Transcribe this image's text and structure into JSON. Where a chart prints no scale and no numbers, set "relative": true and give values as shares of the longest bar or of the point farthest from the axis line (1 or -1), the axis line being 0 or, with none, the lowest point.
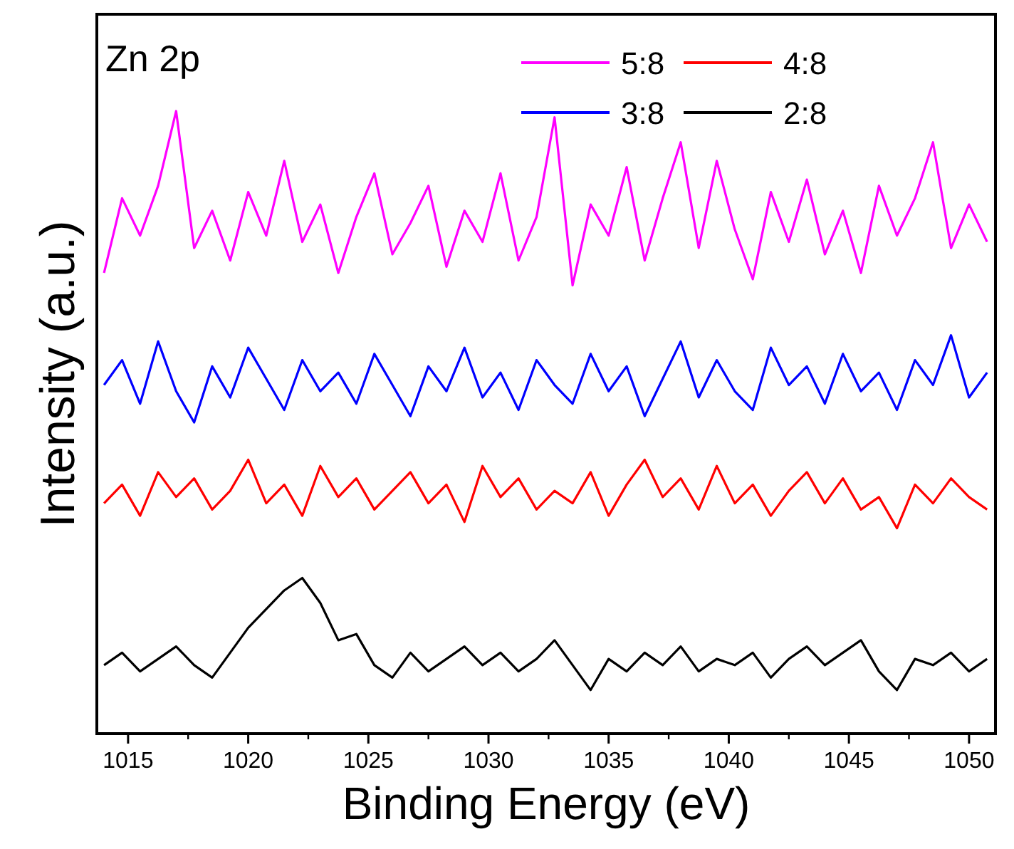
{
  "chart_data": {
    "type": "line",
    "relative": true,
    "xlabel": "Binding Energy (eV)",
    "ylabel": "Intensity (a.u.)",
    "annotations": [
      "Zn 2p"
    ],
    "legend": "top right",
    "tick_labels": "x",
    "xlim": [
      1013.7,
      1051.1
    ],
    "xticks": [
      1015,
      1020,
      1025,
      1030,
      1035,
      1040,
      1045,
      1050
    ],
    "x": [
      1014,
      1014.75,
      1015.5,
      1016.25,
      1017,
      1017.75,
      1018.5,
      1019.25,
      1020,
      1020.75,
      1021.5,
      1022.25,
      1023,
      1023.75,
      1024.5,
      1025.25,
      1026,
      1026.75,
      1027.5,
      1028.25,
      1029,
      1029.75,
      1030.5,
      1031.25,
      1032,
      1032.75,
      1033.5,
      1034.25,
      1035,
      1035.75,
      1036.5,
      1037.25,
      1038,
      1038.75,
      1039.5,
      1040.25,
      1041,
      1041.75,
      1042.5,
      1043.25,
      1044,
      1044.75,
      1045.5,
      1046.25,
      1047,
      1047.75,
      1048.5,
      1049.25,
      1050,
      1050.75
    ],
    "series": [
      {
        "name": "5:8",
        "color": "#ff00ff",
        "values": [
          0.74,
          0.86,
          0.8,
          0.88,
          1.0,
          0.78,
          0.84,
          0.76,
          0.87,
          0.8,
          0.92,
          0.79,
          0.85,
          0.74,
          0.83,
          0.9,
          0.77,
          0.82,
          0.88,
          0.75,
          0.84,
          0.79,
          0.9,
          0.76,
          0.83,
          0.99,
          0.72,
          0.85,
          0.8,
          0.91,
          0.76,
          0.86,
          0.95,
          0.78,
          0.92,
          0.81,
          0.73,
          0.87,
          0.79,
          0.89,
          0.77,
          0.84,
          0.74,
          0.88,
          0.8,
          0.86,
          0.95,
          0.78,
          0.85,
          0.79
        ]
      },
      {
        "name": "4:8",
        "color": "#ff0000",
        "values": [
          0.37,
          0.4,
          0.35,
          0.42,
          0.38,
          0.41,
          0.36,
          0.39,
          0.44,
          0.37,
          0.4,
          0.35,
          0.43,
          0.38,
          0.41,
          0.36,
          0.39,
          0.42,
          0.37,
          0.4,
          0.34,
          0.43,
          0.38,
          0.41,
          0.36,
          0.39,
          0.37,
          0.42,
          0.35,
          0.4,
          0.44,
          0.38,
          0.41,
          0.36,
          0.43,
          0.37,
          0.4,
          0.35,
          0.39,
          0.42,
          0.37,
          0.41,
          0.36,
          0.38,
          0.33,
          0.4,
          0.37,
          0.41,
          0.38,
          0.36
        ]
      },
      {
        "name": "3:8",
        "color": "#0000ff",
        "values": [
          0.56,
          0.6,
          0.53,
          0.63,
          0.55,
          0.5,
          0.59,
          0.54,
          0.62,
          0.57,
          0.52,
          0.6,
          0.55,
          0.58,
          0.53,
          0.61,
          0.56,
          0.51,
          0.59,
          0.55,
          0.62,
          0.54,
          0.58,
          0.52,
          0.6,
          0.56,
          0.53,
          0.61,
          0.55,
          0.59,
          0.51,
          0.57,
          0.63,
          0.54,
          0.6,
          0.55,
          0.52,
          0.62,
          0.56,
          0.59,
          0.53,
          0.61,
          0.55,
          0.58,
          0.52,
          0.6,
          0.56,
          0.64,
          0.54,
          0.58
        ]
      },
      {
        "name": "2:8",
        "color": "#000000",
        "values": [
          0.11,
          0.13,
          0.1,
          0.12,
          0.14,
          0.11,
          0.09,
          0.13,
          0.17,
          0.2,
          0.23,
          0.25,
          0.21,
          0.15,
          0.16,
          0.11,
          0.09,
          0.13,
          0.1,
          0.12,
          0.14,
          0.11,
          0.13,
          0.1,
          0.12,
          0.15,
          0.11,
          0.07,
          0.12,
          0.1,
          0.13,
          0.11,
          0.14,
          0.1,
          0.12,
          0.11,
          0.13,
          0.09,
          0.12,
          0.14,
          0.11,
          0.13,
          0.15,
          0.1,
          0.07,
          0.12,
          0.11,
          0.13,
          0.1,
          0.12
        ]
      }
    ]
  }
}
